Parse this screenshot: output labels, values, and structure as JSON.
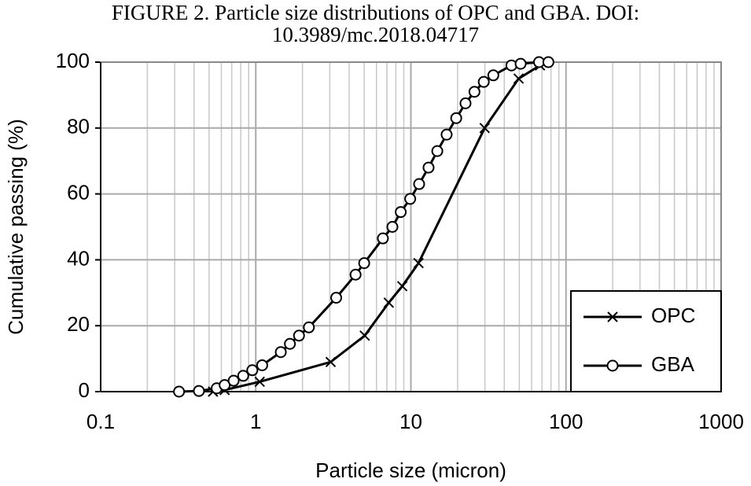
{
  "chart_data": {
    "type": "line",
    "title": "FIGURE 2. Particle size distributions of OPC and GBA. DOI: 10.3989/mc.2018.04717",
    "xlabel": "Particle size (micron)",
    "ylabel": "Cumulative passing (%)",
    "xscale": "log",
    "xlim": [
      0.1,
      1000
    ],
    "xticks": [
      0.1,
      1,
      10,
      100,
      1000
    ],
    "ylim": [
      0,
      100
    ],
    "yticks": [
      0,
      20,
      40,
      60,
      80,
      100
    ],
    "grid": true,
    "legend": "lower right",
    "series": [
      {
        "name": "OPC",
        "color": "#000000",
        "marker": "x",
        "x": [
          0.53,
          0.63,
          1.06,
          3.04,
          5.04,
          7.2,
          8.8,
          11.2,
          29.9,
          49.5,
          68,
          73.5
        ],
        "values": [
          0,
          0.5,
          3,
          9,
          17,
          27,
          32,
          39,
          80,
          95,
          99,
          100
        ]
      },
      {
        "name": "GBA",
        "color": "#000000",
        "marker": "o",
        "x": [
          0.32,
          0.43,
          0.56,
          0.63,
          0.72,
          0.83,
          0.95,
          1.1,
          1.45,
          1.66,
          1.9,
          2.2,
          3.3,
          4.4,
          5.0,
          6.6,
          7.6,
          8.6,
          9.9,
          11.3,
          13,
          14.8,
          17,
          19.6,
          22.5,
          25.7,
          29.5,
          34,
          44.5,
          51,
          67,
          77
        ],
        "values": [
          0,
          0.2,
          1,
          2,
          3.3,
          4.8,
          6.5,
          8,
          12,
          14.5,
          17,
          19.5,
          28.5,
          35.5,
          39,
          46.5,
          50,
          54.5,
          58.5,
          63,
          68,
          73,
          78,
          83,
          87.5,
          91,
          94,
          96,
          99,
          99.5,
          100,
          100
        ]
      }
    ]
  }
}
